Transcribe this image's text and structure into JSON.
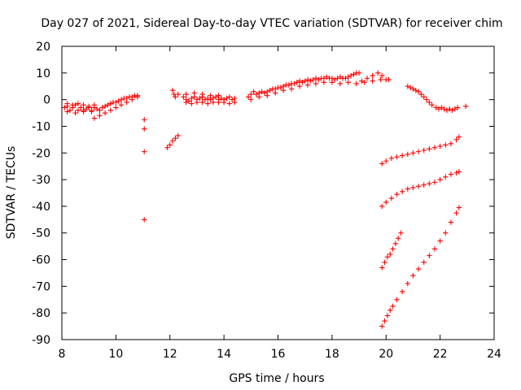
{
  "chart_data": {
    "type": "scatter",
    "title": "Day 027 of 2021, Sidereal Day-to-day VTEC variation (SDTVAR) for receiver chim",
    "xlabel": "GPS time / hours",
    "ylabel": "SDTVAR / TECUs",
    "xlim": [
      8,
      24
    ],
    "ylim": [
      -90,
      20
    ],
    "xticks": [
      "8",
      "10",
      "12",
      "14",
      "16",
      "18",
      "20",
      "22",
      "24"
    ],
    "yticks": [
      "20",
      "10",
      "0",
      "-10",
      "-20",
      "-30",
      "-40",
      "-50",
      "-60",
      "-70",
      "-80",
      "-90"
    ],
    "grid": false,
    "marker": "+",
    "point_color": "#ff0000",
    "series": [
      {
        "points": [
          [
            8.1,
            -3
          ],
          [
            8.2,
            -2.5
          ],
          [
            8.3,
            -4
          ],
          [
            8.4,
            -3
          ],
          [
            8.5,
            -2
          ],
          [
            8.6,
            -4
          ],
          [
            8.7,
            -3
          ],
          [
            8.8,
            -4
          ],
          [
            8.9,
            -3.5
          ],
          [
            9.0,
            -3
          ],
          [
            9.1,
            -4
          ],
          [
            9.2,
            -3
          ],
          [
            9.3,
            -3.5
          ],
          [
            9.4,
            -4
          ],
          [
            9.5,
            -3
          ],
          [
            9.6,
            -2.5
          ],
          [
            9.7,
            -2
          ],
          [
            9.8,
            -1.5
          ],
          [
            9.9,
            -1
          ],
          [
            10.0,
            -1
          ],
          [
            10.1,
            -0.5
          ],
          [
            10.2,
            0
          ],
          [
            10.3,
            0.5
          ],
          [
            10.4,
            0.5
          ],
          [
            10.5,
            1
          ],
          [
            10.6,
            1
          ],
          [
            10.7,
            1.5
          ],
          [
            10.8,
            1.5
          ],
          [
            9.2,
            -7
          ],
          [
            9.4,
            -6
          ],
          [
            9.6,
            -5
          ],
          [
            9.8,
            -4
          ],
          [
            10.0,
            -3
          ],
          [
            10.2,
            -2
          ],
          [
            10.4,
            -1
          ],
          [
            10.6,
            0
          ],
          [
            10.8,
            1
          ],
          [
            8.2,
            -1.5
          ],
          [
            8.4,
            -2
          ],
          [
            8.6,
            -1.5
          ],
          [
            8.8,
            -2
          ],
          [
            9.0,
            -2.5
          ],
          [
            9.2,
            -2
          ],
          [
            8.2,
            -4.5
          ],
          [
            8.5,
            -5
          ],
          [
            8.8,
            -4.5
          ],
          [
            9.1,
            -4.5
          ]
        ]
      },
      {
        "points": [
          [
            11.05,
            -7.5
          ],
          [
            11.05,
            -11
          ],
          [
            11.05,
            -19.5
          ],
          [
            11.05,
            -45
          ]
        ]
      },
      {
        "points": [
          [
            11.9,
            -18
          ],
          [
            12.0,
            -17
          ],
          [
            12.1,
            -15.5
          ],
          [
            12.2,
            -14.5
          ],
          [
            12.3,
            -13.5
          ]
        ]
      },
      {
        "points": [
          [
            12.1,
            3.5
          ],
          [
            12.15,
            2
          ],
          [
            12.2,
            1
          ],
          [
            12.3,
            2
          ],
          [
            12.5,
            1
          ],
          [
            12.6,
            0
          ],
          [
            12.7,
            -0.5
          ],
          [
            12.8,
            0.5
          ],
          [
            12.9,
            1
          ],
          [
            13.0,
            0
          ],
          [
            13.1,
            0.5
          ],
          [
            13.2,
            1
          ],
          [
            13.3,
            0
          ],
          [
            13.4,
            0.5
          ],
          [
            13.5,
            0
          ],
          [
            13.6,
            0.5
          ],
          [
            13.7,
            1
          ],
          [
            13.8,
            0
          ],
          [
            13.9,
            0.5
          ],
          [
            14.0,
            0
          ],
          [
            14.1,
            0.5
          ],
          [
            14.2,
            1
          ],
          [
            14.3,
            0
          ],
          [
            14.4,
            0.5
          ],
          [
            12.6,
            -1
          ],
          [
            12.8,
            -1.5
          ],
          [
            13.0,
            -1
          ],
          [
            13.2,
            -1
          ],
          [
            13.4,
            -1.5
          ],
          [
            13.6,
            -1
          ],
          [
            13.8,
            -1
          ],
          [
            14.0,
            -1
          ],
          [
            14.2,
            -1.5
          ],
          [
            14.4,
            -1
          ],
          [
            12.6,
            2
          ],
          [
            12.9,
            2.5
          ],
          [
            13.2,
            2
          ],
          [
            13.5,
            1.5
          ],
          [
            13.8,
            1.5
          ]
        ]
      },
      {
        "points": [
          [
            14.9,
            1
          ],
          [
            15.0,
            2
          ],
          [
            15.1,
            3
          ],
          [
            15.2,
            2
          ],
          [
            15.3,
            2.5
          ],
          [
            15.4,
            3
          ],
          [
            15.5,
            2.5
          ],
          [
            15.6,
            3
          ],
          [
            15.7,
            3.5
          ],
          [
            15.8,
            4
          ],
          [
            15.9,
            4
          ],
          [
            16.0,
            4.5
          ],
          [
            16.1,
            4.5
          ],
          [
            16.2,
            5
          ],
          [
            16.3,
            5.5
          ],
          [
            16.4,
            5.5
          ],
          [
            16.5,
            6
          ],
          [
            16.6,
            6
          ],
          [
            16.7,
            6.5
          ],
          [
            16.8,
            7
          ],
          [
            16.9,
            6.5
          ],
          [
            17.0,
            7
          ],
          [
            17.1,
            7.5
          ],
          [
            17.2,
            7
          ],
          [
            17.3,
            7.5
          ],
          [
            17.4,
            8
          ],
          [
            17.5,
            7.5
          ],
          [
            17.6,
            8
          ],
          [
            17.7,
            8
          ],
          [
            17.8,
            8.5
          ],
          [
            17.9,
            8
          ],
          [
            18.0,
            8
          ],
          [
            18.1,
            7.5
          ],
          [
            18.2,
            8
          ],
          [
            18.3,
            8.5
          ],
          [
            18.4,
            8
          ],
          [
            18.5,
            8
          ],
          [
            18.6,
            8.5
          ],
          [
            18.7,
            9
          ],
          [
            18.8,
            9.5
          ],
          [
            18.9,
            10
          ],
          [
            19.0,
            10
          ],
          [
            15.0,
            0
          ],
          [
            15.3,
            1
          ],
          [
            15.6,
            1.5
          ],
          [
            15.9,
            2.5
          ],
          [
            16.2,
            3.5
          ],
          [
            16.5,
            4
          ],
          [
            16.8,
            5
          ],
          [
            17.1,
            5.5
          ],
          [
            17.4,
            6
          ],
          [
            17.7,
            6.5
          ],
          [
            18.0,
            6.5
          ],
          [
            18.3,
            6
          ],
          [
            18.6,
            6.5
          ],
          [
            18.9,
            6
          ],
          [
            19.2,
            6.5
          ],
          [
            19.5,
            7
          ],
          [
            19.8,
            7.5
          ],
          [
            20.1,
            7.5
          ],
          [
            19.1,
            7
          ],
          [
            19.3,
            8
          ],
          [
            19.5,
            9
          ],
          [
            19.7,
            10
          ],
          [
            19.85,
            9
          ],
          [
            20.0,
            7.5
          ]
        ]
      },
      {
        "points": [
          [
            20.8,
            5
          ],
          [
            20.9,
            4.5
          ],
          [
            21.0,
            4
          ],
          [
            21.1,
            3.5
          ],
          [
            21.2,
            3
          ],
          [
            21.3,
            2
          ],
          [
            21.4,
            1
          ],
          [
            21.5,
            0
          ],
          [
            21.6,
            -1
          ],
          [
            21.7,
            -2
          ]
        ]
      },
      {
        "points": [
          [
            21.85,
            -3
          ],
          [
            21.95,
            -3.5
          ],
          [
            22.05,
            -3
          ],
          [
            22.15,
            -3.5
          ],
          [
            22.25,
            -4
          ],
          [
            22.35,
            -3.5
          ],
          [
            22.45,
            -4
          ],
          [
            22.55,
            -3.5
          ],
          [
            22.65,
            -3
          ],
          [
            22.95,
            -2.5
          ]
        ]
      },
      {
        "points": [
          [
            19.85,
            -24
          ],
          [
            20.0,
            -23
          ],
          [
            20.2,
            -22
          ],
          [
            20.4,
            -21.5
          ],
          [
            20.6,
            -21
          ],
          [
            20.8,
            -20.5
          ],
          [
            21.0,
            -20
          ],
          [
            21.2,
            -19.5
          ],
          [
            21.4,
            -19
          ],
          [
            21.6,
            -18.5
          ],
          [
            21.8,
            -18
          ],
          [
            22.0,
            -17.5
          ],
          [
            22.2,
            -17
          ],
          [
            22.4,
            -16.5
          ],
          [
            22.6,
            -15
          ],
          [
            22.7,
            -14
          ]
        ]
      },
      {
        "points": [
          [
            19.85,
            -40
          ],
          [
            20.0,
            -38.5
          ],
          [
            20.2,
            -37
          ],
          [
            20.4,
            -35.5
          ],
          [
            20.6,
            -34.5
          ],
          [
            20.8,
            -33.5
          ],
          [
            21.0,
            -33
          ],
          [
            21.2,
            -32.5
          ],
          [
            21.4,
            -32
          ],
          [
            21.6,
            -31.5
          ],
          [
            21.8,
            -31
          ],
          [
            22.0,
            -30
          ],
          [
            22.2,
            -29
          ],
          [
            22.4,
            -28
          ],
          [
            22.6,
            -27.5
          ],
          [
            22.7,
            -27
          ]
        ]
      },
      {
        "points": [
          [
            19.85,
            -63
          ],
          [
            19.95,
            -61
          ],
          [
            20.05,
            -59
          ],
          [
            20.15,
            -58
          ],
          [
            20.25,
            -56
          ],
          [
            20.35,
            -54
          ],
          [
            20.45,
            -52
          ],
          [
            20.55,
            -50
          ]
        ]
      },
      {
        "points": [
          [
            19.85,
            -85
          ],
          [
            19.95,
            -83
          ],
          [
            20.05,
            -81
          ],
          [
            20.15,
            -79
          ],
          [
            20.25,
            -77.5
          ],
          [
            20.4,
            -75
          ],
          [
            20.6,
            -72
          ],
          [
            20.8,
            -69
          ],
          [
            21.0,
            -66
          ],
          [
            21.2,
            -63.5
          ],
          [
            21.4,
            -61
          ],
          [
            21.6,
            -58.5
          ],
          [
            21.8,
            -56
          ],
          [
            22.0,
            -53
          ],
          [
            22.2,
            -50
          ],
          [
            22.4,
            -46
          ],
          [
            22.6,
            -42.5
          ],
          [
            22.7,
            -40.5
          ]
        ]
      }
    ]
  }
}
